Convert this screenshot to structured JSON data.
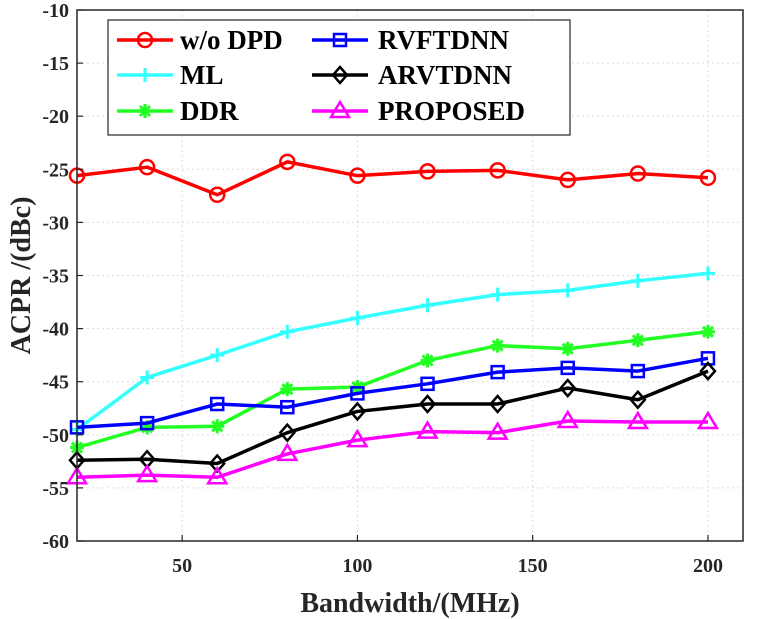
{
  "chart_data": {
    "type": "line",
    "xlabel": "Bandwidth/(MHz)",
    "ylabel": "ACPR /(dBc)",
    "xlim": [
      20,
      210
    ],
    "ylim": [
      -60,
      -10
    ],
    "xticks": [
      50,
      100,
      150,
      200
    ],
    "yticks": [
      -10,
      -15,
      -20,
      -25,
      -30,
      -35,
      -40,
      -45,
      -50,
      -55,
      -60
    ],
    "grid": true,
    "legend_position": "top-left",
    "x": [
      20,
      40,
      60,
      80,
      100,
      120,
      140,
      160,
      180,
      200
    ],
    "series": [
      {
        "name": "w/o DPD",
        "color": "#ff0000",
        "marker": "circle",
        "values": [
          -25.6,
          -24.8,
          -27.4,
          -24.3,
          -25.6,
          -25.2,
          -25.1,
          -26.0,
          -25.4,
          -25.8
        ]
      },
      {
        "name": "ML",
        "color": "#33ffff",
        "marker": "plus",
        "values": [
          -49.5,
          -44.6,
          -42.5,
          -40.3,
          -39.0,
          -37.8,
          -36.8,
          -36.4,
          -35.5,
          -34.8
        ]
      },
      {
        "name": "DDR",
        "color": "#22ff22",
        "marker": "asterisk",
        "values": [
          -51.2,
          -49.3,
          -49.2,
          -45.7,
          -45.5,
          -43.0,
          -41.6,
          -41.9,
          -41.1,
          -40.3
        ]
      },
      {
        "name": "RVFTDNN",
        "color": "#0000ff",
        "marker": "square",
        "values": [
          -49.3,
          -48.9,
          -47.1,
          -47.4,
          -46.1,
          -45.2,
          -44.1,
          -43.7,
          -44.0,
          -42.8
        ]
      },
      {
        "name": "ARVTDNN",
        "color": "#000000",
        "marker": "diamond",
        "values": [
          -52.4,
          -52.3,
          -52.7,
          -49.8,
          -47.8,
          -47.1,
          -47.1,
          -45.6,
          -46.7,
          -44.0
        ]
      },
      {
        "name": "PROPOSED",
        "color": "#ff00ff",
        "marker": "triangle",
        "values": [
          -54.0,
          -53.8,
          -54.0,
          -51.8,
          -50.5,
          -49.7,
          -49.8,
          -48.7,
          -48.8,
          -48.8
        ]
      }
    ]
  }
}
